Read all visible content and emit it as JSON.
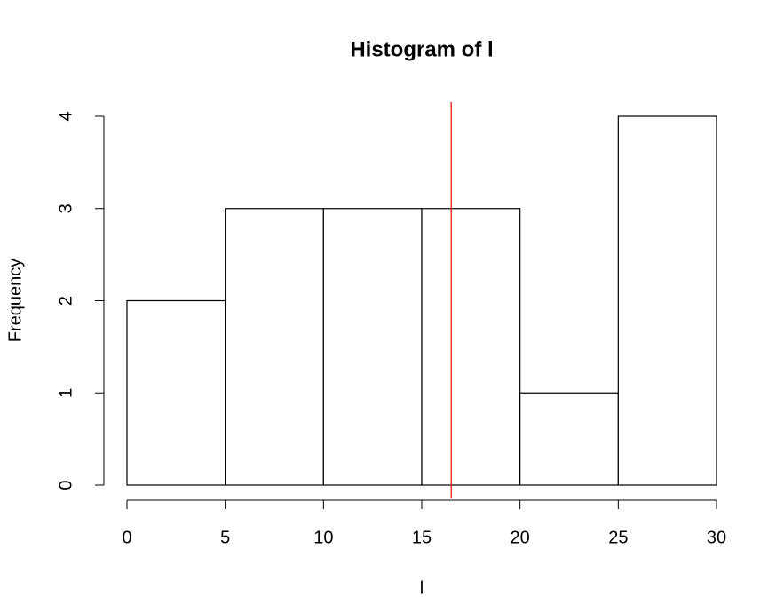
{
  "chart_data": {
    "type": "histogram",
    "title": "Histogram of l",
    "xlabel": "l",
    "ylabel": "Frequency",
    "bins": [
      0,
      5,
      10,
      15,
      20,
      25,
      30
    ],
    "counts": [
      2,
      3,
      3,
      3,
      1,
      4
    ],
    "color": "#ffffff",
    "edgecolor": "#000000",
    "xlim": [
      0,
      30
    ],
    "ylim": [
      0,
      4
    ],
    "xticks": [
      0,
      5,
      10,
      15,
      20,
      25,
      30
    ],
    "yticks": [
      0,
      1,
      2,
      3,
      4
    ],
    "vlines": [
      {
        "x": 16.5,
        "color": "#ff0000"
      }
    ],
    "grid": false
  }
}
